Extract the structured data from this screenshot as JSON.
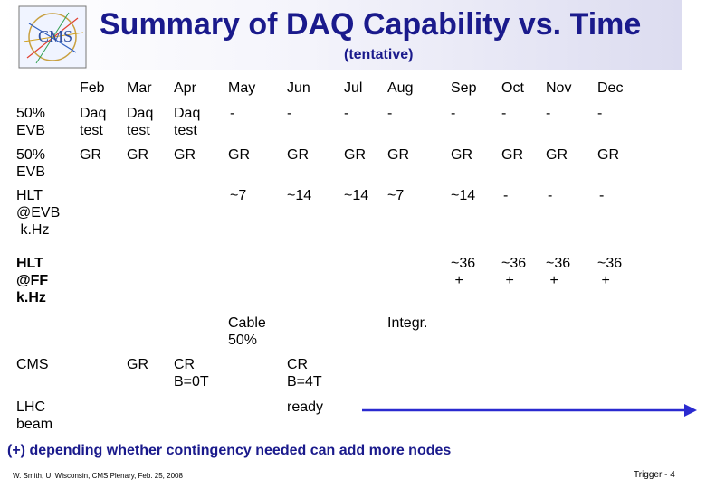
{
  "header": {
    "title": "Summary of DAQ Capability vs. Time",
    "subtitle": "(tentative)",
    "logo_text": "CMS"
  },
  "months": [
    "Feb",
    "Mar",
    "Apr",
    "May",
    "Jun",
    "Jul",
    "Aug",
    "Sep",
    "Oct",
    "Nov",
    "Dec"
  ],
  "rows": [
    {
      "label": "50%\nEVB",
      "cells": [
        "Daq\ntest",
        "Daq\ntest",
        "Daq\ntest",
        "-",
        "-",
        "-",
        "-",
        "-",
        "-",
        "-",
        "-"
      ]
    },
    {
      "label": "50%\nEVB",
      "cells": [
        "GR",
        "GR",
        "GR",
        "GR",
        "GR",
        "GR",
        "GR",
        "GR",
        "GR",
        "GR",
        "GR"
      ]
    },
    {
      "label": "HLT\n@EVB\n k.Hz",
      "cells": [
        "",
        "",
        "",
        "~7",
        "~14",
        "~14",
        "~7",
        "~14",
        "-",
        "-",
        "-"
      ]
    },
    {
      "label": "HLT\n@FF\nk.Hz",
      "cells": [
        "",
        "",
        "",
        "",
        "",
        "",
        "",
        "~36\n +",
        "~36\n +",
        "~36\n +",
        "~36\n +"
      ]
    }
  ],
  "milestones": {
    "cable": "Cable\n50%",
    "integr": "Integr."
  },
  "cms_row": {
    "label": "CMS",
    "mar": "GR",
    "apr": "CR\nB=0T",
    "jun": "CR\nB=4T"
  },
  "lhc_row": {
    "label": "LHC\nbeam",
    "jun": "ready"
  },
  "colors": {
    "title": "#1a1a8c",
    "arrow": "#2a2ad0"
  },
  "footnote": "(+) depending whether contingency needed can add more nodes",
  "footer": {
    "left": "W. Smith, U. Wisconsin,  CMS Plenary, Feb. 25, 2008",
    "right": "Trigger -  4"
  }
}
